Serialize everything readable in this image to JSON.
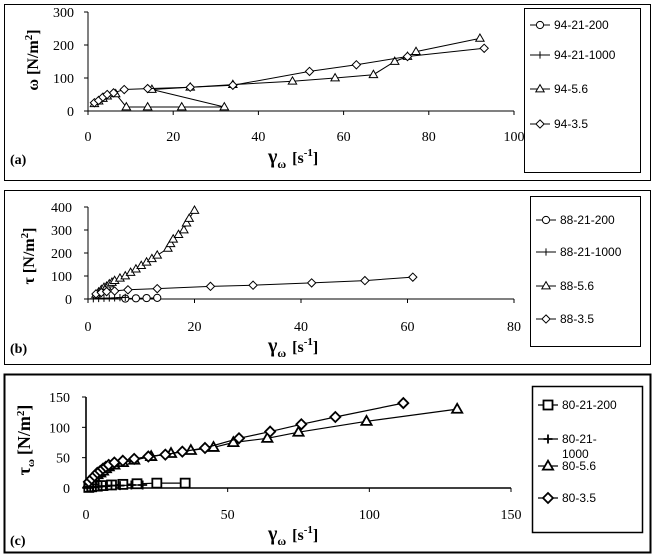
{
  "chart_data": [
    {
      "type": "line",
      "panel_label": "(a)",
      "ylabel_symbol": "ω",
      "ylabel_unit": "[N/m",
      "ylabel_sup": "2",
      "ylabel_close": "]",
      "xlabel_symbol": "γ",
      "xlabel_sub": "ω",
      "xlabel_unit": "[s",
      "xlabel_sup": "-1",
      "xlabel_close": "]",
      "xlim": [
        0,
        100
      ],
      "ylim": [
        0,
        300
      ],
      "xticks": [
        "0",
        "20",
        "40",
        "60",
        "80",
        "100"
      ],
      "yticks": [
        "0",
        "100",
        "200",
        "300"
      ],
      "series": [
        {
          "name": "94-21-200",
          "marker": "circle",
          "points": []
        },
        {
          "name": "94-21-1000",
          "marker": "plus",
          "points": []
        },
        {
          "name": "94-5.6",
          "marker": "triangle",
          "points": [
            [
              1.5,
              22
            ],
            [
              2.5,
              30
            ],
            [
              3.5,
              38
            ],
            [
              4.5,
              45
            ],
            [
              6.5,
              52
            ],
            [
              9,
              12
            ],
            [
              14,
              12
            ],
            [
              22,
              12
            ],
            [
              32,
              12
            ],
            [
              15,
              65
            ],
            [
              24,
              72
            ],
            [
              34,
              80
            ],
            [
              48,
              90
            ],
            [
              58,
              100
            ],
            [
              67,
              110
            ],
            [
              72,
              150
            ],
            [
              75,
              165
            ],
            [
              77,
              180
            ],
            [
              92,
              220
            ]
          ]
        },
        {
          "name": "94-3.5",
          "marker": "diamond",
          "points": [
            [
              1.5,
              25
            ],
            [
              2.5,
              32
            ],
            [
              3.5,
              42
            ],
            [
              4.5,
              50
            ],
            [
              6,
              55
            ],
            [
              8.5,
              65
            ],
            [
              14,
              68
            ],
            [
              24,
              72
            ],
            [
              34,
              78
            ],
            [
              52,
              120
            ],
            [
              63,
              140
            ],
            [
              75,
              165
            ],
            [
              93,
              190
            ]
          ]
        }
      ]
    },
    {
      "type": "line",
      "panel_label": "(b)",
      "ylabel_symbol": "τ",
      "ylabel_unit": "[N/m",
      "ylabel_sup": "2",
      "ylabel_close": "]",
      "xlabel_symbol": "γ",
      "xlabel_sub": "ω",
      "xlabel_unit": "[s",
      "xlabel_sup": "-1",
      "xlabel_close": "]",
      "xlim": [
        0,
        80
      ],
      "ylim": [
        0,
        400
      ],
      "xticks": [
        "0",
        "20",
        "40",
        "60",
        "80"
      ],
      "yticks": [
        "0",
        "100",
        "200",
        "300",
        "400"
      ],
      "series": [
        {
          "name": "88-21-200",
          "marker": "circle",
          "points": [
            [
              7,
              2
            ],
            [
              9,
              3
            ],
            [
              11,
              4
            ],
            [
              13,
              5
            ]
          ]
        },
        {
          "name": "88-21-1000",
          "marker": "plus",
          "points": [
            [
              1,
              1
            ],
            [
              2,
              2
            ],
            [
              3,
              3
            ],
            [
              4,
              4
            ],
            [
              5,
              5
            ],
            [
              6,
              6
            ],
            [
              7,
              7
            ]
          ]
        },
        {
          "name": "88-5.6",
          "marker": "triangle",
          "points": [
            [
              1.5,
              20
            ],
            [
              2,
              30
            ],
            [
              2.5,
              40
            ],
            [
              3,
              50
            ],
            [
              3.5,
              55
            ],
            [
              4,
              65
            ],
            [
              4.5,
              72
            ],
            [
              5,
              80
            ],
            [
              6,
              90
            ],
            [
              7,
              100
            ],
            [
              8,
              115
            ],
            [
              9,
              130
            ],
            [
              10,
              145
            ],
            [
              11,
              160
            ],
            [
              12,
              175
            ],
            [
              13,
              190
            ],
            [
              15,
              220
            ],
            [
              15.5,
              240
            ],
            [
              16,
              260
            ],
            [
              17,
              280
            ],
            [
              18,
              300
            ],
            [
              18.5,
              330
            ],
            [
              19,
              350
            ],
            [
              20,
              385
            ]
          ]
        },
        {
          "name": "88-3.5",
          "marker": "diamond",
          "points": [
            [
              1.5,
              22
            ],
            [
              2.5,
              28
            ],
            [
              3.5,
              32
            ],
            [
              5,
              35
            ],
            [
              7.5,
              40
            ],
            [
              13,
              45
            ],
            [
              23,
              55
            ],
            [
              31,
              60
            ],
            [
              42,
              70
            ],
            [
              52,
              80
            ],
            [
              61,
              95
            ]
          ]
        }
      ]
    },
    {
      "type": "line",
      "panel_label": "(c)",
      "ylabel_symbol": "τ",
      "ylabel_sub": "ω",
      "ylabel_unit": "[N/m",
      "ylabel_sup": "2",
      "ylabel_close": "]",
      "xlabel_symbol": "γ",
      "xlabel_sub": "ω",
      "xlabel_unit": "[s",
      "xlabel_sup": "-1",
      "xlabel_close": "]",
      "xlim": [
        0,
        150
      ],
      "ylim": [
        0,
        150
      ],
      "xticks": [
        "0",
        "50",
        "100",
        "150"
      ],
      "yticks": [
        "0",
        "50",
        "100",
        "150"
      ],
      "series": [
        {
          "name": "80-21-200",
          "marker": "square",
          "points": [
            [
              1,
              1
            ],
            [
              2,
              2
            ],
            [
              4,
              3
            ],
            [
              6,
              4
            ],
            [
              9,
              5
            ],
            [
              13,
              6
            ],
            [
              18,
              7
            ],
            [
              25,
              8
            ],
            [
              35,
              8
            ]
          ]
        },
        {
          "name": "80-21-\n1000",
          "marker": "plus",
          "points": [
            [
              0.5,
              0
            ],
            [
              1.5,
              1
            ],
            [
              2.5,
              1
            ],
            [
              3.5,
              2
            ],
            [
              4.5,
              2
            ],
            [
              5.5,
              3
            ],
            [
              7,
              3
            ],
            [
              9,
              4
            ],
            [
              12,
              4
            ],
            [
              16,
              5
            ],
            [
              20,
              5
            ]
          ]
        },
        {
          "name": "80-5.6",
          "marker": "triangle",
          "points": [
            [
              1,
              8
            ],
            [
              2,
              12
            ],
            [
              3,
              18
            ],
            [
              4,
              22
            ],
            [
              5,
              25
            ],
            [
              6,
              28
            ],
            [
              7,
              32
            ],
            [
              8,
              35
            ],
            [
              10,
              38
            ],
            [
              13,
              42
            ],
            [
              17,
              46
            ],
            [
              23,
              52
            ],
            [
              30,
              57
            ],
            [
              37,
              62
            ],
            [
              45,
              67
            ],
            [
              52,
              75
            ],
            [
              64,
              82
            ],
            [
              75,
              92
            ],
            [
              99,
              110
            ],
            [
              131,
              130
            ]
          ]
        },
        {
          "name": "80-3.5",
          "marker": "diamond",
          "points": [
            [
              1,
              10
            ],
            [
              2,
              15
            ],
            [
              3,
              20
            ],
            [
              4,
              25
            ],
            [
              5,
              28
            ],
            [
              6,
              32
            ],
            [
              7,
              35
            ],
            [
              8,
              38
            ],
            [
              10,
              42
            ],
            [
              13,
              45
            ],
            [
              17,
              48
            ],
            [
              22,
              52
            ],
            [
              28,
              55
            ],
            [
              34,
              60
            ],
            [
              42,
              66
            ],
            [
              54,
              82
            ],
            [
              65,
              93
            ],
            [
              76,
              105
            ],
            [
              88,
              117
            ],
            [
              112,
              140
            ]
          ]
        }
      ]
    }
  ]
}
